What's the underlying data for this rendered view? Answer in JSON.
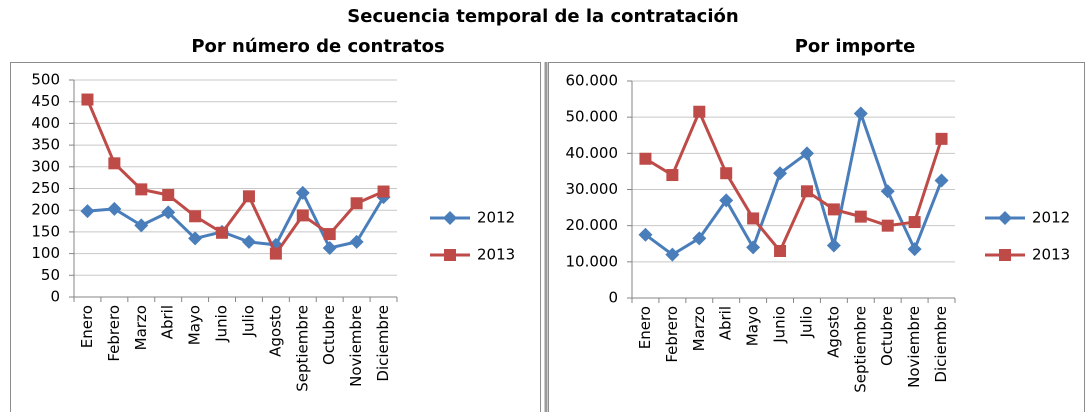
{
  "title": "Secuencia temporal de la contratación",
  "chart_data": [
    {
      "type": "line",
      "title": "Por número de contratos",
      "categories": [
        "Enero",
        "Febrero",
        "Marzo",
        "Abril",
        "Mayo",
        "Junio",
        "Julio",
        "Agosto",
        "Septiembre",
        "Octubre",
        "Noviembre",
        "Diciembre"
      ],
      "series": [
        {
          "name": "2012",
          "color": "#4a7ebb",
          "marker": "diamond",
          "values": [
            198,
            203,
            165,
            195,
            135,
            150,
            127,
            120,
            240,
            113,
            127,
            230
          ]
        },
        {
          "name": "2013",
          "color": "#be4b48",
          "marker": "square",
          "values": [
            455,
            308,
            248,
            235,
            186,
            148,
            232,
            100,
            188,
            145,
            216,
            243
          ]
        }
      ],
      "ylim": [
        0,
        500
      ],
      "yticks": [
        0,
        50,
        100,
        150,
        200,
        250,
        300,
        350,
        400,
        450,
        500
      ],
      "grid": true,
      "legend": "right"
    },
    {
      "type": "line",
      "title": "Por importe",
      "categories": [
        "Enero",
        "Febrero",
        "Marzo",
        "Abril",
        "Mayo",
        "Junio",
        "Julio",
        "Agosto",
        "Septiembre",
        "Octubre",
        "Noviembre",
        "Diciembre"
      ],
      "series": [
        {
          "name": "2012",
          "color": "#4a7ebb",
          "marker": "diamond",
          "values": [
            17500,
            12000,
            16500,
            27000,
            14000,
            34500,
            40000,
            14500,
            51000,
            29500,
            13500,
            32500
          ]
        },
        {
          "name": "2013",
          "color": "#be4b48",
          "marker": "square",
          "values": [
            38500,
            34000,
            51500,
            34500,
            22000,
            13000,
            29500,
            24500,
            22500,
            20000,
            21000,
            44000
          ]
        }
      ],
      "ylim": [
        0,
        60000
      ],
      "yticks": [
        0,
        {
          "value": 10000,
          "label": "10.000"
        },
        {
          "value": 20000,
          "label": "20.000"
        },
        {
          "value": 30000,
          "label": "30.000"
        },
        {
          "value": 40000,
          "label": "40.000"
        },
        {
          "value": 50000,
          "label": "50.000"
        },
        {
          "value": 60000,
          "label": "60.000"
        }
      ],
      "grid": true,
      "legend": "right"
    }
  ]
}
